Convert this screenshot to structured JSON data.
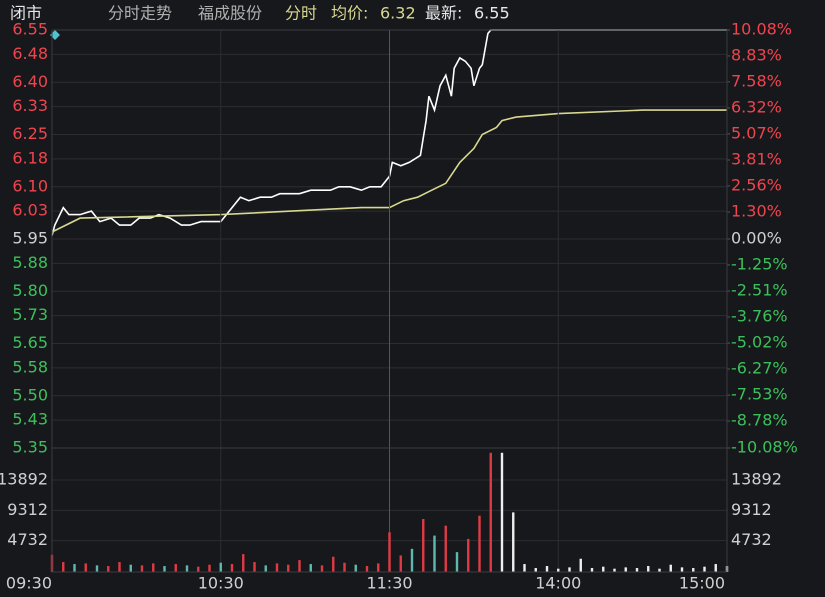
{
  "header": {
    "status": "闭市",
    "view": "分时走势",
    "name": "福成股份",
    "mode": "分时",
    "avg_label": "均价:",
    "avg_value": "6.32",
    "last_label": "最新:",
    "last_value": "6.55"
  },
  "chart_data": [
    {
      "type": "line",
      "xlim": [
        0,
        240
      ],
      "ylim": [
        5.35,
        6.55
      ],
      "y2lim": [
        -10.08,
        10.08
      ],
      "grid": true,
      "yticks": [
        6.55,
        6.48,
        {
          "value": 6.4,
          "label": "6.40"
        },
        6.33,
        6.25,
        6.18,
        {
          "value": 6.1,
          "label": "6.10"
        },
        6.03,
        5.95,
        5.88,
        {
          "value": 5.8,
          "label": "5.80"
        },
        5.73,
        5.65,
        5.58,
        {
          "value": 5.5,
          "label": "5.50"
        },
        5.43,
        5.35
      ],
      "y2ticks": [
        {
          "value": 10.08,
          "label": "10.08%"
        },
        {
          "value": 8.83,
          "label": "8.83%"
        },
        {
          "value": 7.58,
          "label": "7.58%"
        },
        {
          "value": 6.32,
          "label": "6.32%"
        },
        {
          "value": 5.07,
          "label": "5.07%"
        },
        {
          "value": 3.81,
          "label": "3.81%"
        },
        {
          "value": 2.56,
          "label": "2.56%"
        },
        {
          "value": 1.3,
          "label": "1.30%"
        },
        {
          "value": 0,
          "label": "0.00%"
        },
        {
          "value": -1.25,
          "label": "-1.25%"
        },
        {
          "value": -2.51,
          "label": "-2.51%"
        },
        {
          "value": -3.76,
          "label": "-3.76%"
        },
        {
          "value": -5.02,
          "label": "-5.02%"
        },
        {
          "value": -6.27,
          "label": "-6.27%"
        },
        {
          "value": -7.53,
          "label": "-7.53%"
        },
        {
          "value": -8.78,
          "label": "-8.78%"
        },
        {
          "value": -10.08,
          "label": "-10.08%"
        }
      ],
      "series": [
        {
          "color": "#ffffff",
          "x": [
            0,
            1,
            4,
            6,
            10,
            14,
            17,
            21,
            24,
            28,
            31,
            35,
            38,
            42,
            46,
            49,
            53,
            56,
            60,
            63,
            67,
            70,
            74,
            78,
            81,
            85,
            88,
            92,
            95,
            99,
            102,
            106,
            110,
            113,
            117,
            120,
            121,
            124,
            127,
            131,
            133,
            134,
            136,
            138,
            140,
            142,
            143,
            145,
            147,
            149,
            150,
            152,
            153,
            155,
            156,
            240
          ],
          "values": [
            5.96,
            5.99,
            6.04,
            6.02,
            6.02,
            6.03,
            6.0,
            6.01,
            5.99,
            5.99,
            6.01,
            6.01,
            6.02,
            6.01,
            5.99,
            5.99,
            6.0,
            6.0,
            6.0,
            6.03,
            6.07,
            6.06,
            6.07,
            6.07,
            6.08,
            6.08,
            6.08,
            6.09,
            6.09,
            6.09,
            6.1,
            6.1,
            6.09,
            6.1,
            6.1,
            6.13,
            6.17,
            6.16,
            6.17,
            6.19,
            6.29,
            6.36,
            6.32,
            6.39,
            6.42,
            6.36,
            6.44,
            6.47,
            6.46,
            6.44,
            6.39,
            6.44,
            6.45,
            6.54,
            6.55,
            6.55
          ]
        },
        {
          "color": "#d8d890",
          "x": [
            0,
            10,
            60,
            110,
            120,
            125,
            130,
            135,
            140,
            145,
            150,
            153,
            158,
            160,
            165,
            180,
            210,
            240
          ],
          "values": [
            5.97,
            6.01,
            6.02,
            6.04,
            6.04,
            6.06,
            6.07,
            6.09,
            6.11,
            6.17,
            6.21,
            6.25,
            6.27,
            6.29,
            6.3,
            6.31,
            6.32,
            6.32
          ]
        }
      ]
    },
    {
      "type": "bar",
      "xlim": [
        0,
        240
      ],
      "ylim": [
        0,
        18120
      ],
      "yticks": [
        13892,
        9312,
        4732
      ],
      "xticks": [
        {
          "value": 0,
          "label": "09:30"
        },
        {
          "value": 60,
          "label": "10:30"
        },
        {
          "value": 120,
          "label": "11:30"
        },
        {
          "value": 180,
          "label": "14:00"
        },
        {
          "value": 240,
          "label": "15:00"
        }
      ],
      "x": [
        0,
        4,
        8,
        12,
        16,
        20,
        24,
        28,
        32,
        36,
        40,
        44,
        48,
        52,
        56,
        60,
        64,
        68,
        72,
        76,
        80,
        84,
        88,
        92,
        96,
        100,
        104,
        108,
        112,
        116,
        120,
        124,
        128,
        132,
        136,
        140,
        144,
        148,
        152,
        156,
        160,
        164,
        168,
        172,
        176,
        180,
        184,
        188,
        192,
        196,
        200,
        204,
        208,
        212,
        216,
        220,
        224,
        228,
        232,
        236,
        240
      ],
      "values": [
        2600,
        1500,
        1200,
        1300,
        1000,
        900,
        1500,
        1100,
        1000,
        1300,
        900,
        1200,
        1000,
        800,
        1100,
        1400,
        1200,
        2700,
        1500,
        1000,
        1300,
        1100,
        1800,
        1200,
        1000,
        2300,
        1400,
        1100,
        900,
        1300,
        6000,
        2500,
        3500,
        8000,
        5500,
        7000,
        3000,
        5000,
        8500,
        18000,
        18000,
        9000,
        1200,
        600,
        900,
        500,
        700,
        2000,
        600,
        800,
        500,
        700,
        600,
        900,
        500,
        1100,
        700,
        600,
        800,
        1200,
        900
      ],
      "colors": [
        "#e03a45",
        "#e03a45",
        "#5fb8b0",
        "#e03a45",
        "#5fb8b0",
        "#e03a45",
        "#e03a45",
        "#5fb8b0",
        "#e03a45",
        "#e03a45",
        "#5fb8b0",
        "#e03a45",
        "#5fb8b0",
        "#e03a45",
        "#e03a45",
        "#5fb8b0",
        "#e03a45",
        "#e03a45",
        "#e03a45",
        "#5fb8b0",
        "#e03a45",
        "#e03a45",
        "#e03a45",
        "#5fb8b0",
        "#e03a45",
        "#e03a45",
        "#e03a45",
        "#5fb8b0",
        "#e03a45",
        "#e03a45",
        "#e03a45",
        "#e03a45",
        "#5fb8b0",
        "#e03a45",
        "#5fb8b0",
        "#e03a45",
        "#5fb8b0",
        "#e03a45",
        "#e03a45",
        "#e03a45",
        "#eeeeee",
        "#eeeeee",
        "#eeeeee",
        "#eeeeee",
        "#eeeeee",
        "#eeeeee",
        "#eeeeee",
        "#eeeeee",
        "#eeeeee",
        "#eeeeee",
        "#eeeeee",
        "#eeeeee",
        "#eeeeee",
        "#eeeeee",
        "#eeeeee",
        "#eeeeee",
        "#eeeeee",
        "#eeeeee",
        "#eeeeee",
        "#eeeeee",
        "#eeeeee"
      ]
    }
  ]
}
